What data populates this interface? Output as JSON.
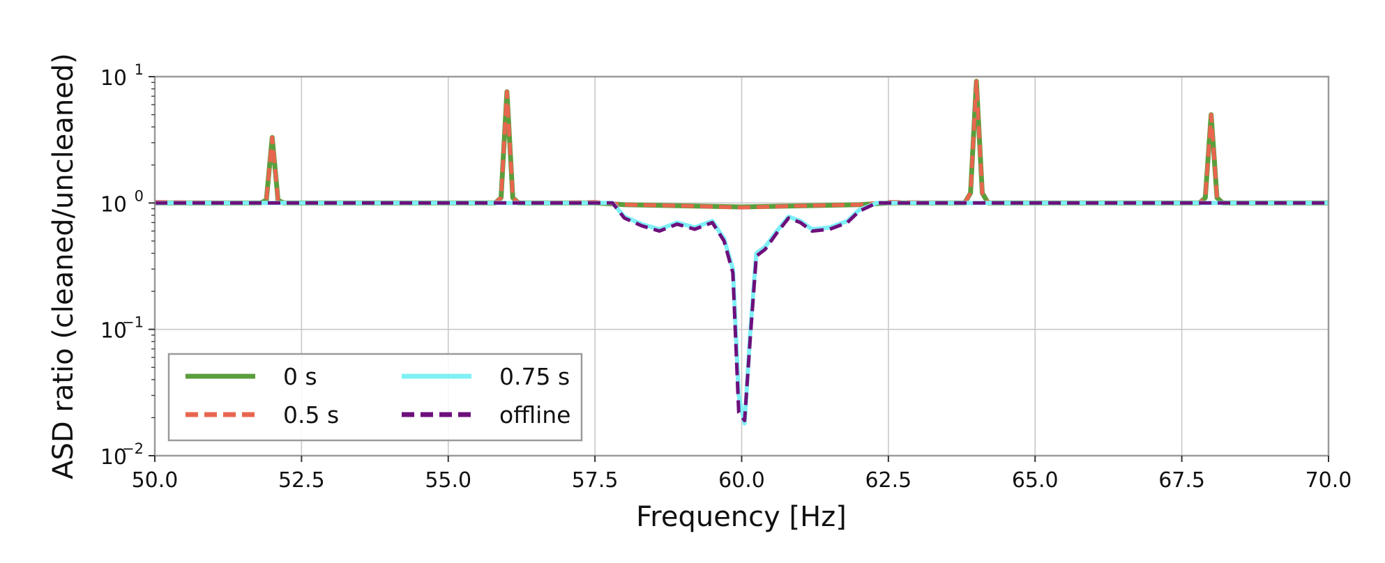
{
  "chart_data": {
    "type": "line",
    "xlabel": "Frequency [Hz]",
    "ylabel": "ASD ratio (cleaned/uncleaned)",
    "xlim": [
      50.0,
      70.0
    ],
    "ylim": [
      0.01,
      10
    ],
    "yscale": "log",
    "grid": true,
    "legend_position": "lower-left",
    "x_ticks": [
      50.0,
      52.5,
      55.0,
      57.5,
      60.0,
      62.5,
      65.0,
      67.5,
      70.0
    ],
    "x_tick_labels": [
      "50.0",
      "52.5",
      "55.0",
      "57.5",
      "60.0",
      "62.5",
      "65.0",
      "67.5",
      "70.0"
    ],
    "y_ticks": [
      {
        "value": 0.01,
        "base": "10",
        "exp": "−2"
      },
      {
        "value": 0.1,
        "base": "10",
        "exp": "−1"
      },
      {
        "value": 1,
        "base": "10",
        "exp": "0"
      },
      {
        "value": 10,
        "base": "10",
        "exp": "1"
      }
    ],
    "series": [
      {
        "name": "0 s",
        "color": "#5a9e3c",
        "style": "solid",
        "points": [
          [
            50.0,
            1.0
          ],
          [
            51.8,
            1.0
          ],
          [
            51.9,
            1.05
          ],
          [
            52.0,
            3.3
          ],
          [
            52.1,
            1.05
          ],
          [
            52.2,
            1.0
          ],
          [
            55.8,
            1.0
          ],
          [
            55.9,
            1.1
          ],
          [
            56.0,
            7.6
          ],
          [
            56.1,
            1.1
          ],
          [
            56.2,
            1.0
          ],
          [
            57.5,
            1.0
          ],
          [
            58.0,
            0.97
          ],
          [
            59.0,
            0.95
          ],
          [
            60.0,
            0.93
          ],
          [
            61.0,
            0.95
          ],
          [
            62.0,
            0.97
          ],
          [
            62.5,
            1.0
          ],
          [
            63.8,
            1.0
          ],
          [
            63.9,
            1.2
          ],
          [
            64.0,
            9.2
          ],
          [
            64.1,
            1.2
          ],
          [
            64.2,
            1.0
          ],
          [
            67.8,
            1.0
          ],
          [
            67.9,
            1.1
          ],
          [
            68.0,
            5.0
          ],
          [
            68.1,
            1.1
          ],
          [
            68.2,
            1.0
          ],
          [
            70.0,
            1.0
          ]
        ]
      },
      {
        "name": "0.5 s",
        "color": "#e8664f",
        "style": "dashed",
        "points": [
          [
            50.0,
            1.02
          ],
          [
            51.8,
            1.0
          ],
          [
            51.9,
            1.05
          ],
          [
            52.0,
            3.3
          ],
          [
            52.1,
            1.05
          ],
          [
            52.2,
            1.0
          ],
          [
            55.8,
            1.0
          ],
          [
            55.9,
            1.1
          ],
          [
            56.0,
            7.6
          ],
          [
            56.1,
            1.1
          ],
          [
            56.2,
            1.0
          ],
          [
            57.5,
            1.02
          ],
          [
            58.0,
            0.97
          ],
          [
            59.0,
            0.95
          ],
          [
            60.0,
            0.92
          ],
          [
            61.0,
            0.95
          ],
          [
            62.0,
            0.97
          ],
          [
            62.5,
            1.02
          ],
          [
            63.8,
            1.0
          ],
          [
            63.9,
            1.2
          ],
          [
            64.0,
            9.2
          ],
          [
            64.1,
            1.2
          ],
          [
            64.2,
            1.0
          ],
          [
            67.8,
            1.0
          ],
          [
            67.9,
            1.1
          ],
          [
            68.0,
            5.0
          ],
          [
            68.1,
            1.1
          ],
          [
            68.2,
            1.0
          ],
          [
            70.0,
            1.0
          ]
        ]
      },
      {
        "name": "0.75 s",
        "color": "#7ff0f5",
        "style": "solid",
        "points": [
          [
            50.0,
            1.0
          ],
          [
            57.8,
            1.0
          ],
          [
            58.0,
            0.78
          ],
          [
            58.3,
            0.68
          ],
          [
            58.6,
            0.62
          ],
          [
            58.9,
            0.7
          ],
          [
            59.2,
            0.64
          ],
          [
            59.5,
            0.72
          ],
          [
            59.7,
            0.52
          ],
          [
            59.85,
            0.3
          ],
          [
            59.95,
            0.03
          ],
          [
            60.05,
            0.018
          ],
          [
            60.15,
            0.1
          ],
          [
            60.25,
            0.4
          ],
          [
            60.4,
            0.45
          ],
          [
            60.6,
            0.6
          ],
          [
            60.8,
            0.78
          ],
          [
            61.0,
            0.72
          ],
          [
            61.2,
            0.62
          ],
          [
            61.5,
            0.64
          ],
          [
            61.8,
            0.72
          ],
          [
            62.0,
            0.88
          ],
          [
            62.3,
            1.0
          ],
          [
            70.0,
            1.0
          ]
        ]
      },
      {
        "name": "offline",
        "color": "#6e0f7c",
        "style": "dashed",
        "points": [
          [
            50.0,
            1.0
          ],
          [
            57.8,
            1.0
          ],
          [
            58.0,
            0.76
          ],
          [
            58.3,
            0.66
          ],
          [
            58.6,
            0.6
          ],
          [
            58.9,
            0.68
          ],
          [
            59.2,
            0.62
          ],
          [
            59.5,
            0.7
          ],
          [
            59.7,
            0.5
          ],
          [
            59.85,
            0.28
          ],
          [
            59.95,
            0.022
          ],
          [
            60.05,
            0.019
          ],
          [
            60.15,
            0.09
          ],
          [
            60.25,
            0.38
          ],
          [
            60.4,
            0.43
          ],
          [
            60.6,
            0.58
          ],
          [
            60.8,
            0.76
          ],
          [
            61.0,
            0.7
          ],
          [
            61.2,
            0.6
          ],
          [
            61.5,
            0.62
          ],
          [
            61.8,
            0.7
          ],
          [
            62.0,
            0.86
          ],
          [
            62.3,
            1.0
          ],
          [
            70.0,
            1.0
          ]
        ]
      }
    ]
  }
}
